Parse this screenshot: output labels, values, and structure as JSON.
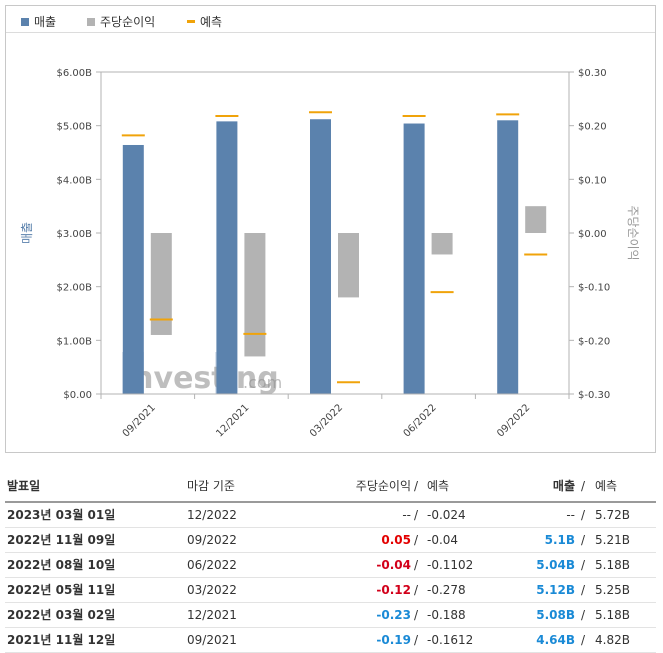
{
  "legend": {
    "revenue": "매출",
    "eps": "주당순이익",
    "forecast": "예측"
  },
  "colors": {
    "revenue": "#5b82ad",
    "eps": "#b3b3b3",
    "forecast": "#f0a30a",
    "positive": "#e30000",
    "negative": "#d2001a",
    "blue": "#1a8ad6"
  },
  "watermark": {
    "text": "Investing",
    "suffix": ".com"
  },
  "chart_data": {
    "type": "bar",
    "categories": [
      "09/2021",
      "12/2021",
      "03/2022",
      "06/2022",
      "09/2022"
    ],
    "series": [
      {
        "name": "매출",
        "axis": "left",
        "values": [
          4.64,
          5.08,
          5.12,
          5.04,
          5.1
        ]
      },
      {
        "name": "주당순이익",
        "axis": "right",
        "values": [
          -0.19,
          -0.23,
          -0.12,
          -0.04,
          0.05
        ]
      },
      {
        "name": "예측",
        "axis": "left",
        "values": [
          4.82,
          5.18,
          5.25,
          5.18,
          5.21
        ]
      },
      {
        "name": "예측",
        "axis": "right",
        "values": [
          -0.1612,
          -0.188,
          -0.278,
          -0.1102,
          -0.04
        ]
      }
    ],
    "ylabel": "매출",
    "y2label": "주당순이익",
    "ylim": [
      0,
      6
    ],
    "y2lim": [
      -0.3,
      0.3
    ],
    "yticks": [
      "$0.00",
      "$1.00B",
      "$2.00B",
      "$3.00B",
      "$4.00B",
      "$5.00B",
      "$6.00B"
    ],
    "y2ticks": [
      "$-0.30",
      "$-0.20",
      "$-0.10",
      "$0.00",
      "$0.10",
      "$0.20",
      "$0.30"
    ],
    "legend_position": "top-left"
  },
  "table": {
    "headers": {
      "date": "발표일",
      "period": "마감 기준",
      "eps": "주당순이익",
      "eps_sep": "/",
      "eps_forecast": "예측",
      "revenue": "매출",
      "rev_sep": "/",
      "rev_forecast": "예측"
    },
    "rows": [
      {
        "date": "2023년 03월 01일",
        "period": "12/2022",
        "eps": "--",
        "eps_sign": "none",
        "eps_forecast": "-0.024",
        "revenue": "--",
        "rev_style": "none",
        "rev_forecast": "5.72B"
      },
      {
        "date": "2022년 11월 09일",
        "period": "09/2022",
        "eps": "0.05",
        "eps_sign": "pos",
        "eps_forecast": "-0.04",
        "revenue": "5.1B",
        "rev_style": "blue",
        "rev_forecast": "5.21B"
      },
      {
        "date": "2022년 08월 10일",
        "period": "06/2022",
        "eps": "-0.04",
        "eps_sign": "neg",
        "eps_forecast": "-0.1102",
        "revenue": "5.04B",
        "rev_style": "blue",
        "rev_forecast": "5.18B"
      },
      {
        "date": "2022년 05월 11일",
        "period": "03/2022",
        "eps": "-0.12",
        "eps_sign": "neg",
        "eps_forecast": "-0.278",
        "revenue": "5.12B",
        "rev_style": "blue",
        "rev_forecast": "5.25B"
      },
      {
        "date": "2022년 03월 02일",
        "period": "12/2021",
        "eps": "-0.23",
        "eps_sign": "blue",
        "eps_forecast": "-0.188",
        "revenue": "5.08B",
        "rev_style": "blue",
        "rev_forecast": "5.18B"
      },
      {
        "date": "2021년 11월 12일",
        "period": "09/2021",
        "eps": "-0.19",
        "eps_sign": "blue",
        "eps_forecast": "-0.1612",
        "revenue": "4.64B",
        "rev_style": "blue",
        "rev_forecast": "4.82B"
      }
    ]
  }
}
